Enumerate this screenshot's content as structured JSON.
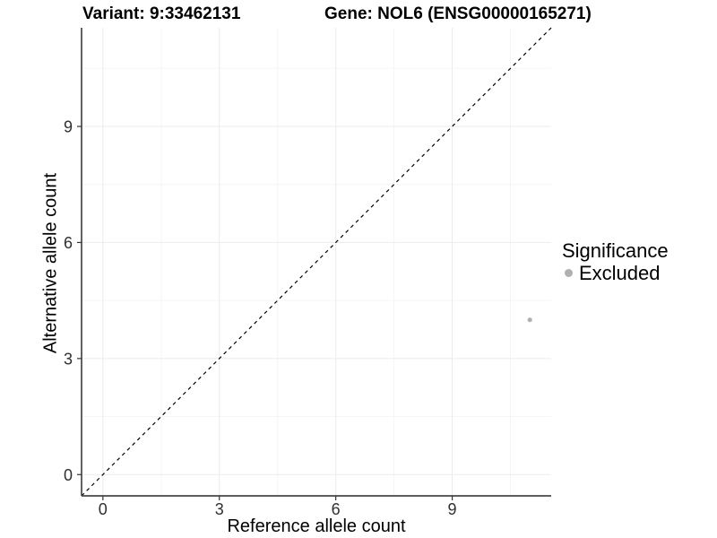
{
  "titles": {
    "variant": "Variant: 9:33462131",
    "gene": "Gene: NOL6 (ENSG00000165271)"
  },
  "chart_data": {
    "type": "scatter",
    "title_left": "Variant: 9:33462131",
    "title_right": "Gene: NOL6 (ENSG00000165271)",
    "xlabel": "Reference allele count",
    "ylabel": "Alternative allele count",
    "xlim": [
      -0.55,
      11.55
    ],
    "ylim": [
      -0.55,
      11.55
    ],
    "x_ticks": [
      0,
      3,
      6,
      9
    ],
    "y_ticks": [
      0,
      3,
      6,
      9
    ],
    "x_minor_ticks": [
      1.5,
      4.5,
      7.5,
      10.5
    ],
    "y_minor_ticks": [
      1.5,
      4.5,
      7.5,
      10.5
    ],
    "grid": "major and minor gridlines on",
    "series": [
      {
        "name": "Excluded",
        "marker": "circle",
        "color": "#b0b0b0",
        "points": [
          {
            "x": 11,
            "y": 4
          }
        ]
      }
    ],
    "identity_line": {
      "description": "y = x diagonal reference line",
      "slope": 1,
      "intercept": 0,
      "style": "dashed",
      "color": "#000000"
    },
    "legend": {
      "title": "Significance",
      "position": "right",
      "entries": [
        {
          "label": "Excluded",
          "marker": "circle",
          "color": "#b0b0b0"
        }
      ]
    },
    "colors": {
      "background": "#ffffff",
      "axis_line": "#474747",
      "tick_mark": "#333333",
      "tick_label": "#303030",
      "major_grid": "#ebebeb",
      "minor_grid": "#f5f5f5",
      "point": "#b0b0b0"
    }
  }
}
